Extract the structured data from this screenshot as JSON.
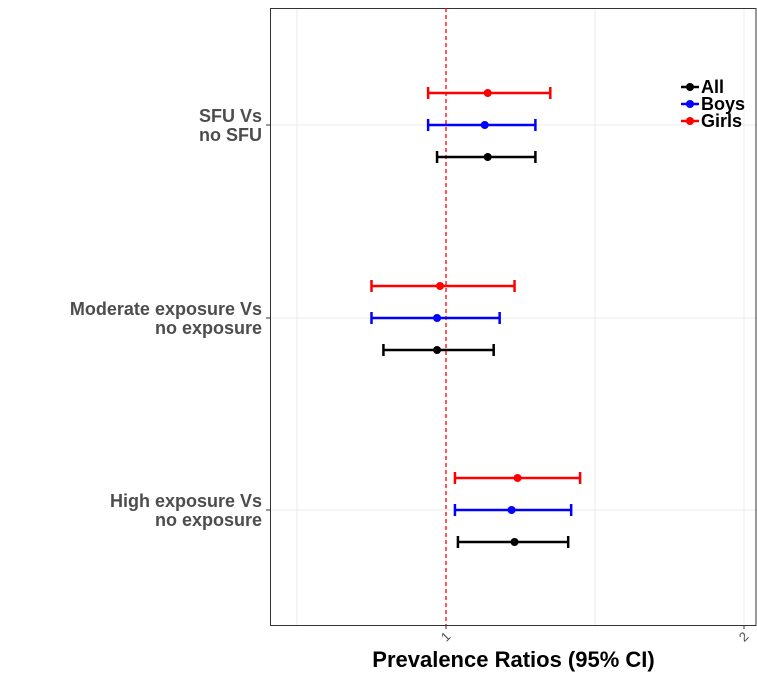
{
  "chart_data": {
    "type": "forest",
    "xlabel": "Prevalence Ratios (95% CI)",
    "ylabel": "",
    "title": "",
    "xlim": [
      0.5,
      2.04
    ],
    "x_ticks": [
      1,
      2
    ],
    "x_tick_labels": [
      "1",
      "2"
    ],
    "reference_line": 1,
    "grid": true,
    "legend_position": "top-right",
    "categories": [
      "SFU Vs\nno SFU",
      "Moderate exposure Vs\nno exposure",
      "High exposure Vs\nno exposure"
    ],
    "category_lines": [
      [
        "SFU Vs",
        "no SFU"
      ],
      [
        "Moderate exposure Vs",
        "no exposure"
      ],
      [
        "High exposure Vs",
        "no exposure"
      ]
    ],
    "series": [
      {
        "name": "Girls",
        "color": "#ff0000",
        "estimates": [
          1.14,
          0.98,
          1.24
        ],
        "lower": [
          0.94,
          0.75,
          1.03
        ],
        "upper": [
          1.35,
          1.23,
          1.45
        ]
      },
      {
        "name": "Boys",
        "color": "#0000ff",
        "estimates": [
          1.13,
          0.97,
          1.22
        ],
        "lower": [
          0.94,
          0.75,
          1.03
        ],
        "upper": [
          1.3,
          1.18,
          1.42
        ]
      },
      {
        "name": "All",
        "color": "#000000",
        "estimates": [
          1.14,
          0.97,
          1.23
        ],
        "lower": [
          0.97,
          0.79,
          1.04
        ],
        "upper": [
          1.3,
          1.16,
          1.41
        ]
      }
    ],
    "legend": [
      {
        "name": "All",
        "color": "#000000"
      },
      {
        "name": "Boys",
        "color": "#0000ff"
      },
      {
        "name": "Girls",
        "color": "#ff0000"
      }
    ]
  }
}
